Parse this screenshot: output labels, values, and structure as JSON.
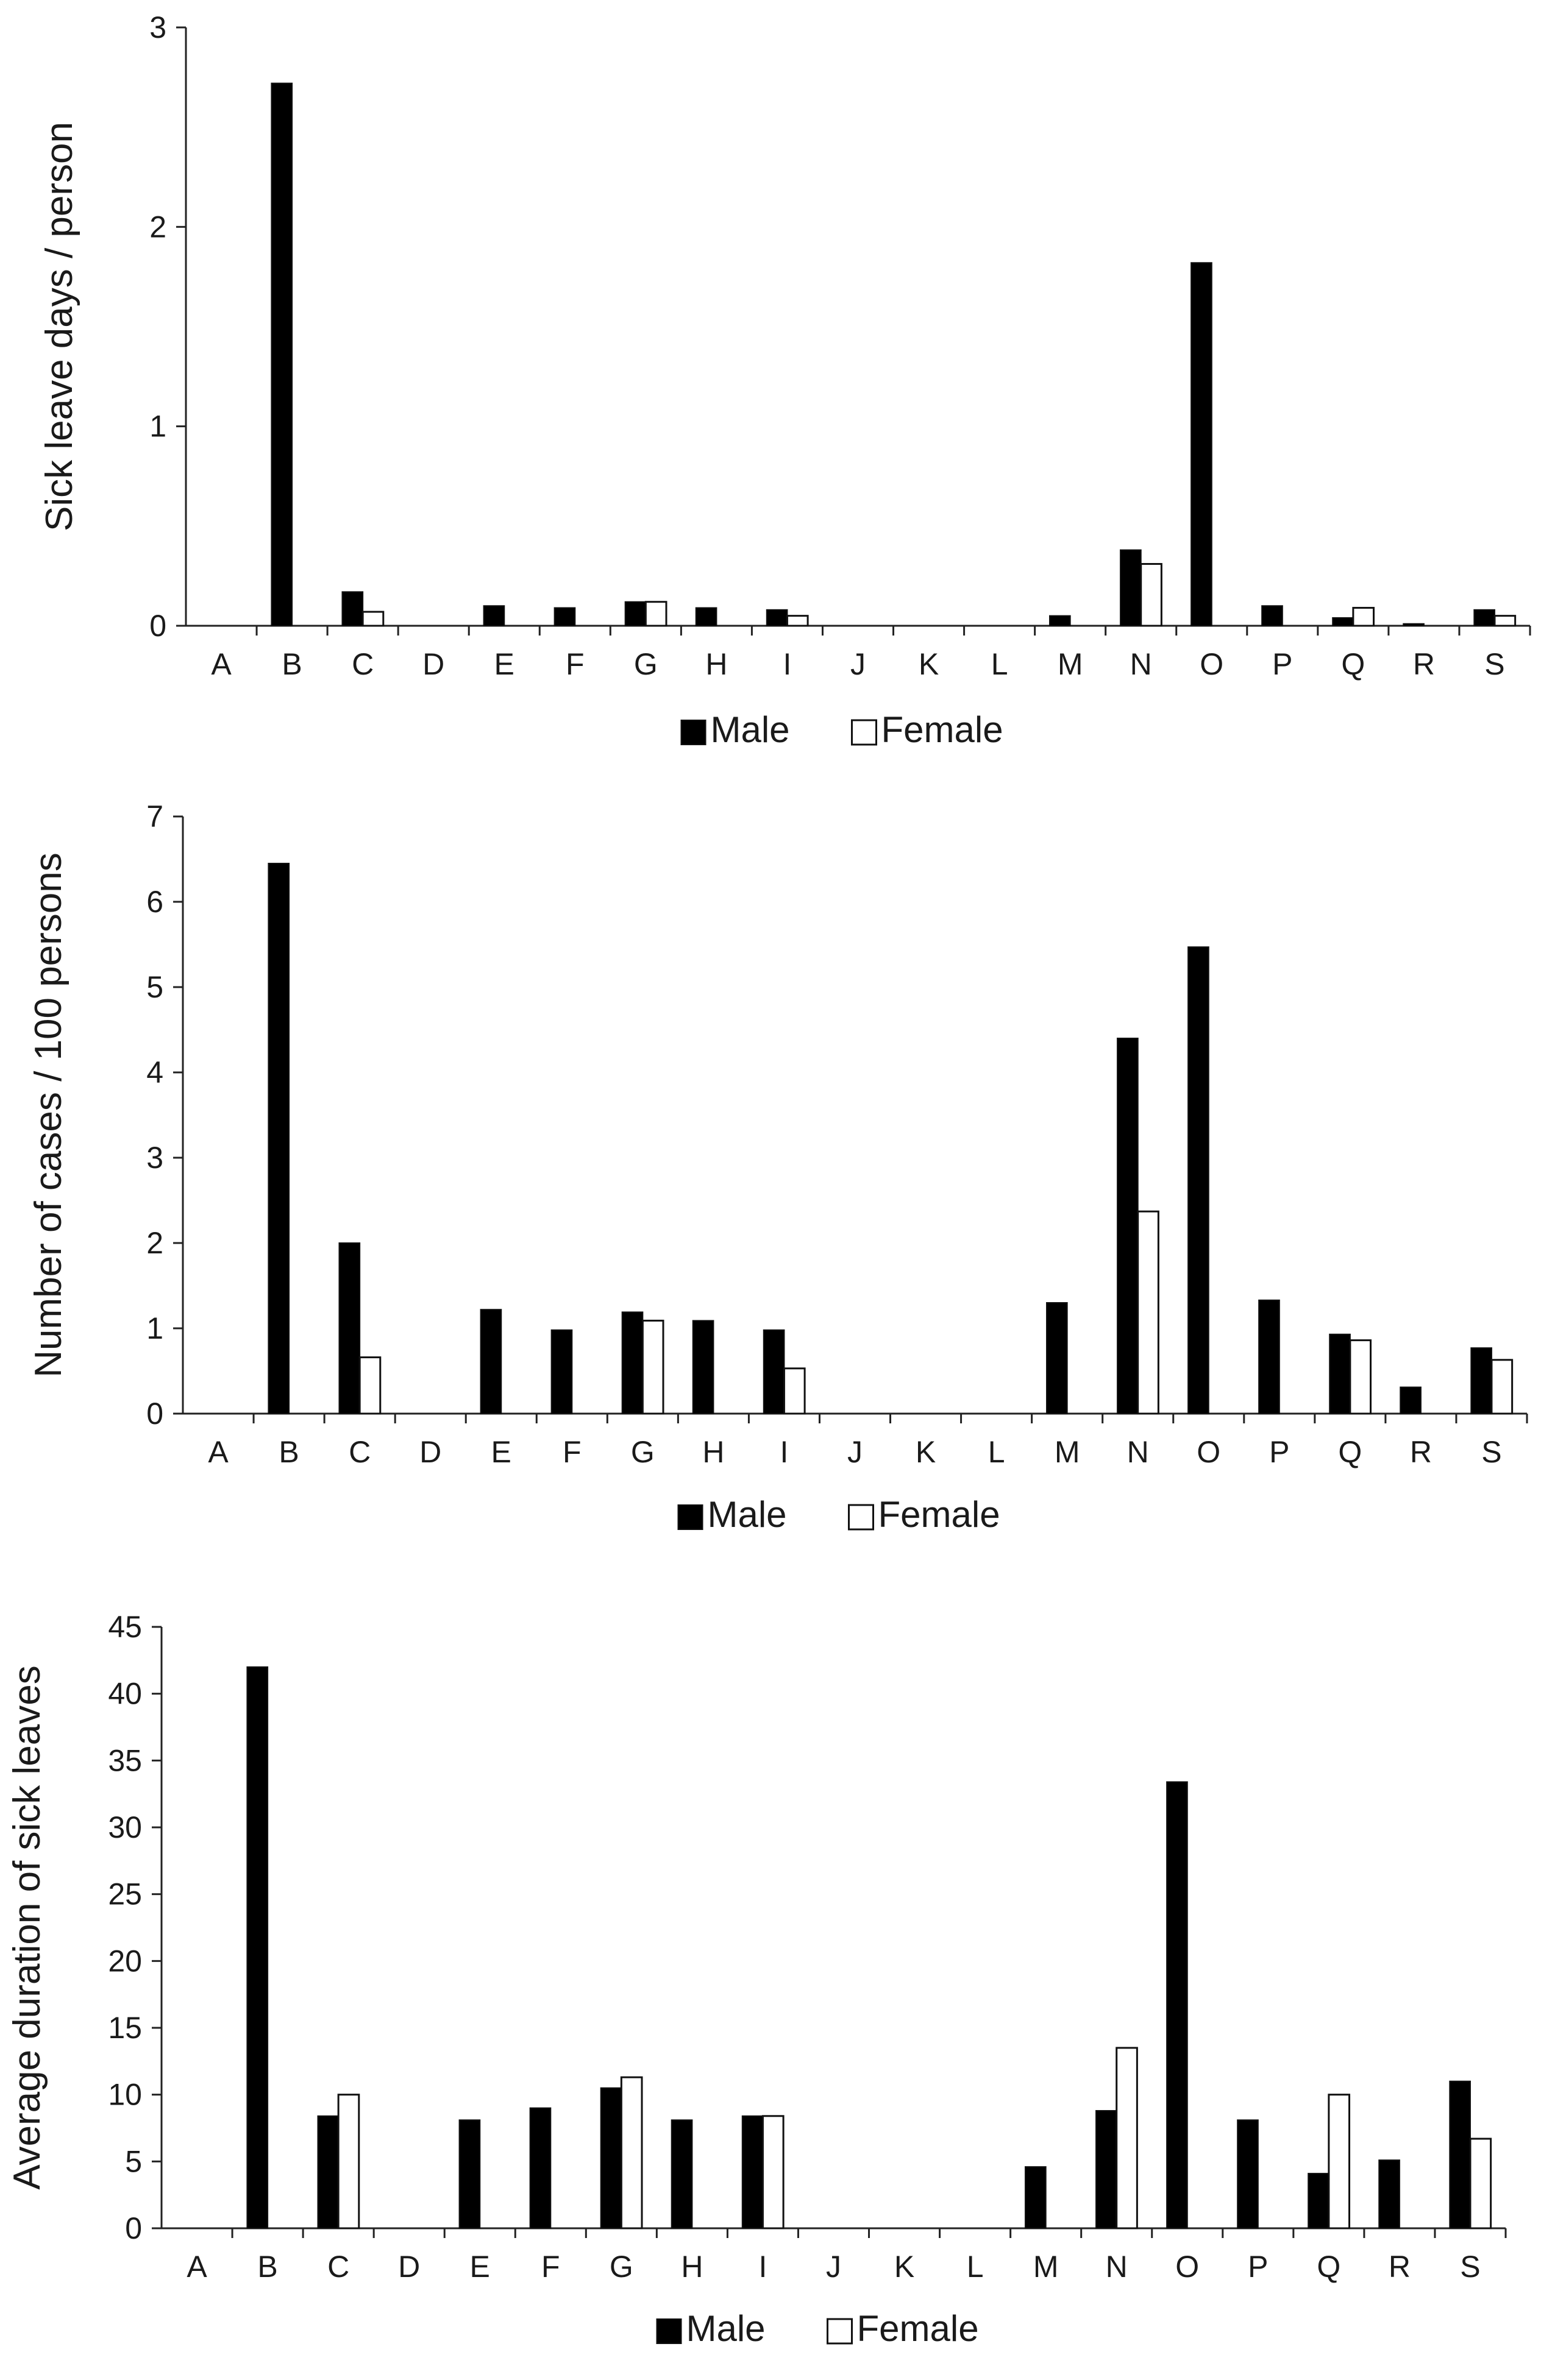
{
  "colors": {
    "male": "#000000",
    "female": "#ffffff",
    "outline": "#111111"
  },
  "chart_data": [
    {
      "type": "bar",
      "title": "",
      "xlabel": "",
      "ylabel": "Sick leave days / person",
      "ylim": [
        0,
        3
      ],
      "yticks": [
        "0",
        "1",
        "2",
        "3"
      ],
      "categories": [
        "A",
        "B",
        "C",
        "D",
        "E",
        "F",
        "G",
        "H",
        "I",
        "J",
        "K",
        "L",
        "M",
        "N",
        "O",
        "P",
        "Q",
        "R",
        "S"
      ],
      "series": [
        {
          "name": "Male",
          "values": [
            0,
            2.72,
            0.17,
            0,
            0.1,
            0.09,
            0.12,
            0.09,
            0.08,
            0,
            0,
            0,
            0.05,
            0.38,
            1.82,
            0.1,
            0.04,
            0.01,
            0.08
          ]
        },
        {
          "name": "Female",
          "values": [
            0,
            0,
            0.07,
            0,
            0,
            0,
            0.12,
            0,
            0.05,
            0,
            0,
            0,
            0,
            0.31,
            0,
            0,
            0.09,
            0,
            0.05
          ]
        }
      ],
      "legend": {
        "position": "bottom-center",
        "items": [
          "Male",
          "Female"
        ]
      }
    },
    {
      "type": "bar",
      "title": "",
      "xlabel": "",
      "ylabel": "Number of cases / 100 persons",
      "ylim": [
        0,
        7
      ],
      "yticks": [
        "0",
        "1",
        "2",
        "3",
        "4",
        "5",
        "6",
        "7"
      ],
      "categories": [
        "A",
        "B",
        "C",
        "D",
        "E",
        "F",
        "G",
        "H",
        "I",
        "J",
        "K",
        "L",
        "M",
        "N",
        "O",
        "P",
        "Q",
        "R",
        "S"
      ],
      "series": [
        {
          "name": "Male",
          "values": [
            0,
            6.45,
            2.0,
            0,
            1.22,
            0.98,
            1.19,
            1.09,
            0.98,
            0,
            0,
            0,
            1.3,
            4.4,
            5.47,
            1.33,
            0.93,
            0.31,
            0.77
          ]
        },
        {
          "name": "Female",
          "values": [
            0,
            0,
            0.66,
            0,
            0,
            0,
            1.09,
            0,
            0.53,
            0,
            0,
            0,
            0,
            2.37,
            0,
            0,
            0.86,
            0,
            0.63
          ]
        }
      ],
      "legend": {
        "position": "bottom-center",
        "items": [
          "Male",
          "Female"
        ]
      }
    },
    {
      "type": "bar",
      "title": "",
      "xlabel": "",
      "ylabel": "Average duration of sick leaves",
      "ylim": [
        0,
        45
      ],
      "yticks": [
        "0",
        "5",
        "10",
        "15",
        "20",
        "25",
        "30",
        "35",
        "40",
        "45"
      ],
      "categories": [
        "A",
        "B",
        "C",
        "D",
        "E",
        "F",
        "G",
        "H",
        "I",
        "J",
        "K",
        "L",
        "M",
        "N",
        "O",
        "P",
        "Q",
        "R",
        "S"
      ],
      "series": [
        {
          "name": "Male",
          "values": [
            0,
            42,
            8.4,
            0,
            8.1,
            9.0,
            10.5,
            8.1,
            8.4,
            0,
            0,
            0,
            4.6,
            8.8,
            33.4,
            8.1,
            4.1,
            5.1,
            11.0
          ]
        },
        {
          "name": "Female",
          "values": [
            0,
            0,
            10.0,
            0,
            0,
            0,
            11.3,
            0,
            8.4,
            0,
            0,
            0,
            0,
            13.5,
            0,
            0,
            10.0,
            0,
            6.7
          ]
        }
      ],
      "legend": {
        "position": "bottom-center",
        "items": [
          "Male",
          "Female"
        ]
      }
    }
  ]
}
